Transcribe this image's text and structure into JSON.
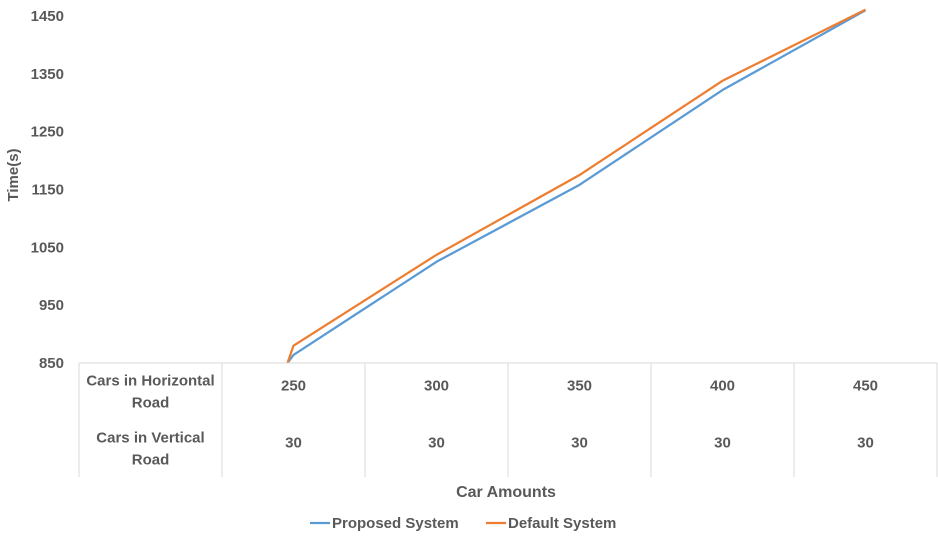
{
  "chart_data": {
    "type": "line",
    "xlabel": "Car Amounts",
    "ylabel": "Time(s)",
    "ylim": [
      850,
      1450
    ],
    "yticks": [
      850,
      950,
      1050,
      1150,
      1250,
      1350,
      1450
    ],
    "grid": false,
    "legend_position": "bottom",
    "table_rows": [
      {
        "label": "Cars in Horizontal Road",
        "values": [
          "250",
          "300",
          "350",
          "400",
          "450"
        ]
      },
      {
        "label": "Cars in Vertical Road",
        "values": [
          "30",
          "30",
          "30",
          "30",
          "30"
        ]
      }
    ],
    "series": [
      {
        "name": "Proposed System",
        "color": "#5b9bd5",
        "values": [
          864,
          1025,
          1158,
          1322,
          1460
        ]
      },
      {
        "name": "Default System",
        "color": "#ed7d31",
        "values": [
          880,
          1037,
          1175,
          1338,
          1461
        ]
      }
    ]
  }
}
